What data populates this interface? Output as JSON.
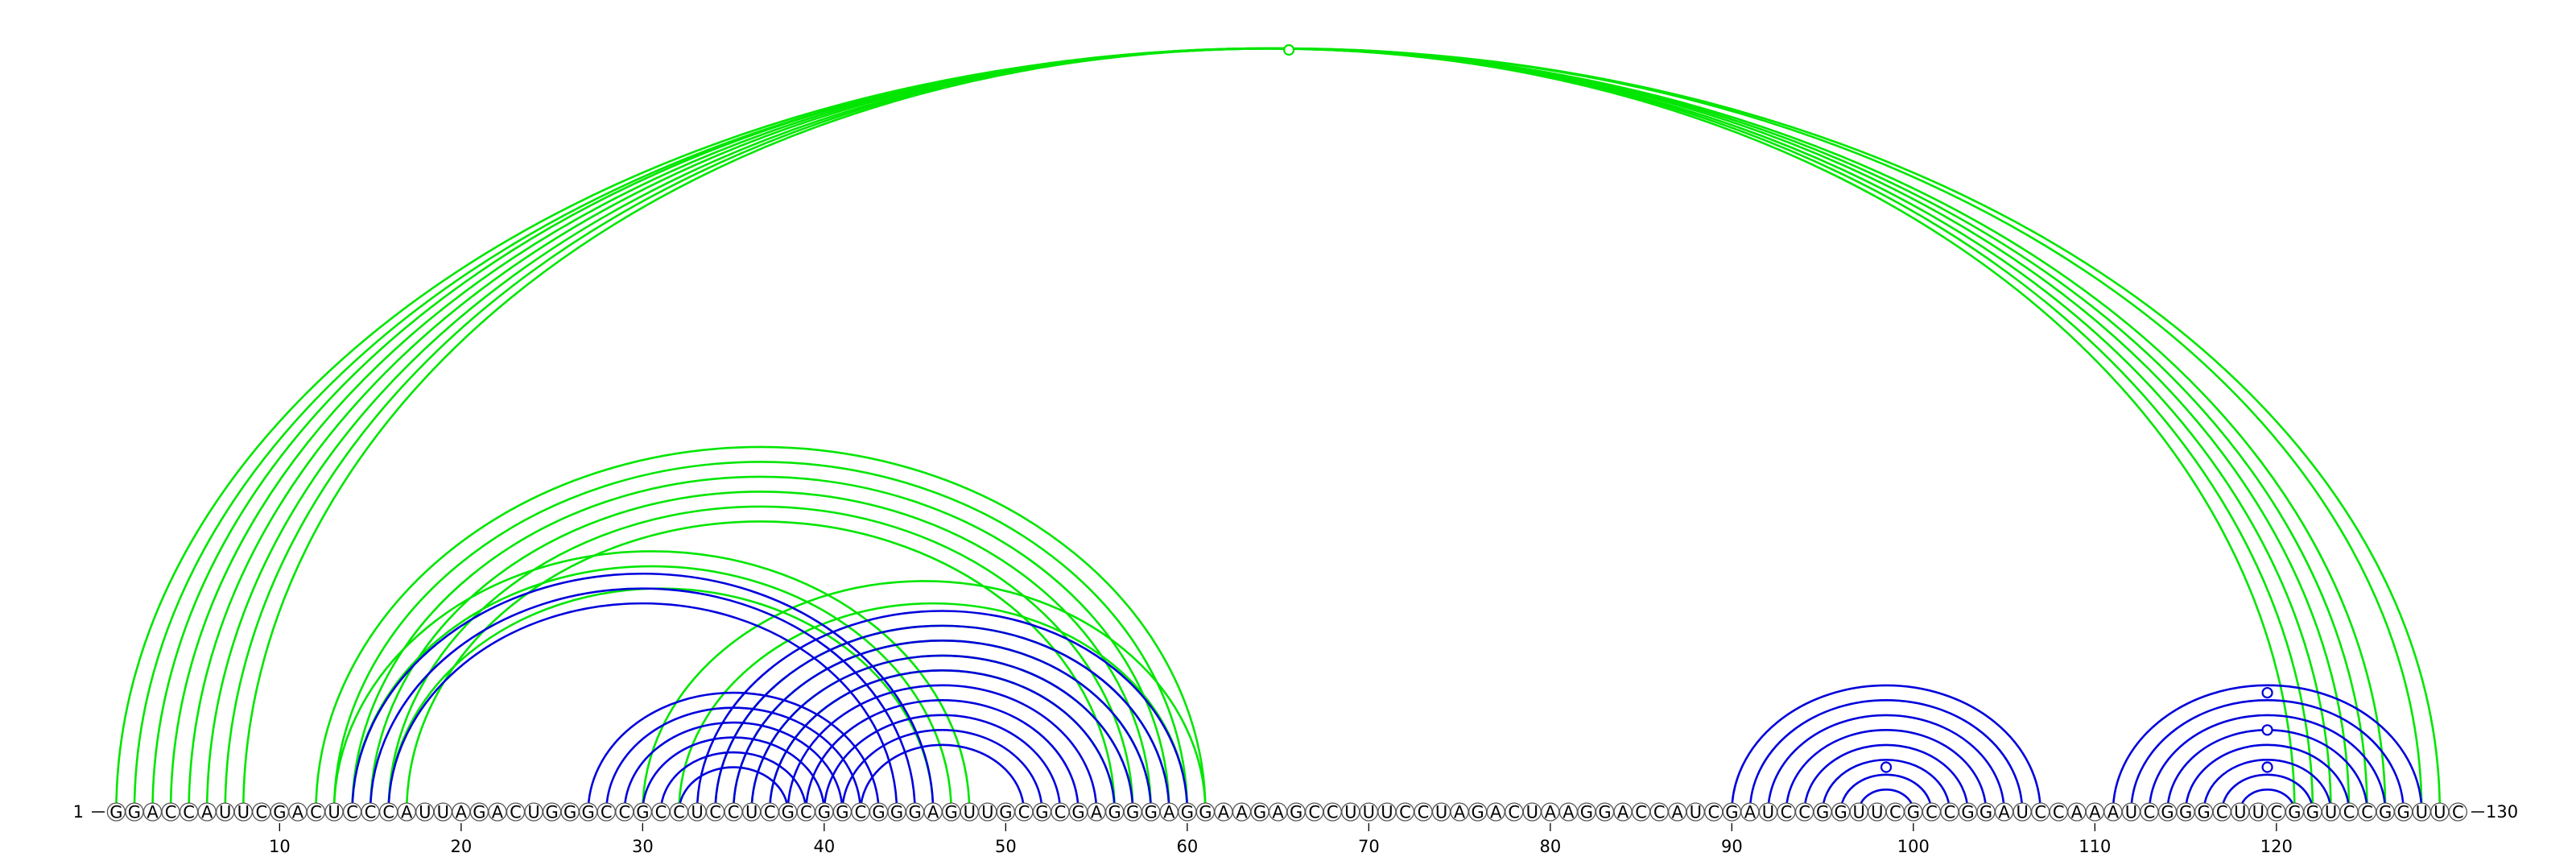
{
  "sequence": "GGACCAUUCGACUCCCAUUAGACUGGGCCGCCUCCUCGCGGCGGGAGUUGCGCGAGGGAGGAAGAGCCUUUCCUAGACUAAGGACCAUCGAUCCGGUUCGCCGGAUCCAAAUCGGGCUUCGGUCCGGUUC",
  "start_label": "1",
  "end_label": "130",
  "position_labels": [
    "10",
    "20",
    "30",
    "40",
    "50",
    "60",
    "70",
    "80",
    "90",
    "100",
    "110",
    "120"
  ],
  "colors": {
    "green": "#00e600",
    "blue": "#0000dd",
    "nucleotide_outline": "#555555"
  },
  "arc_sets": [
    {
      "name": "green-outer-helix",
      "color": "green",
      "pairs": [
        [
          1,
          129
        ],
        [
          2,
          128
        ],
        [
          3,
          126
        ],
        [
          4,
          125
        ],
        [
          5,
          124
        ],
        [
          6,
          123
        ],
        [
          7,
          122
        ],
        [
          8,
          121
        ]
      ]
    },
    {
      "name": "green-long-range-1",
      "color": "green",
      "pairs": [
        [
          12,
          61
        ],
        [
          13,
          60
        ],
        [
          14,
          59
        ],
        [
          15,
          58
        ],
        [
          16,
          57
        ],
        [
          17,
          56
        ]
      ]
    },
    {
      "name": "green-long-range-2",
      "color": "green",
      "pairs": [
        [
          13,
          48
        ],
        [
          14,
          47
        ],
        [
          16,
          46
        ]
      ]
    },
    {
      "name": "green-long-range-3",
      "color": "green",
      "pairs": [
        [
          30,
          61
        ],
        [
          32,
          60
        ],
        [
          34,
          59
        ],
        [
          35,
          58
        ],
        [
          36,
          57
        ],
        [
          37,
          56
        ]
      ]
    },
    {
      "name": "blue-helix-a",
      "color": "blue",
      "pairs": [
        [
          14,
          46
        ],
        [
          15,
          45
        ],
        [
          16,
          44
        ]
      ]
    },
    {
      "name": "blue-helix-b",
      "color": "blue",
      "pairs": [
        [
          27,
          43
        ],
        [
          28,
          42
        ],
        [
          29,
          41
        ],
        [
          30,
          40
        ],
        [
          31,
          39
        ],
        [
          32,
          38
        ]
      ]
    },
    {
      "name": "blue-helix-c",
      "color": "blue",
      "pairs": [
        [
          33,
          60
        ],
        [
          34,
          59
        ],
        [
          35,
          58
        ],
        [
          36,
          57
        ],
        [
          37,
          56
        ],
        [
          38,
          55
        ],
        [
          39,
          54
        ],
        [
          40,
          53
        ],
        [
          41,
          52
        ],
        [
          42,
          51
        ]
      ]
    },
    {
      "name": "blue-hairpin-1",
      "color": "blue",
      "pairs": [
        [
          90,
          107
        ],
        [
          91,
          106
        ],
        [
          92,
          105
        ],
        [
          93,
          104
        ],
        [
          94,
          103
        ],
        [
          95,
          102
        ],
        [
          96,
          101
        ],
        [
          97,
          100
        ]
      ]
    },
    {
      "name": "blue-hairpin-2",
      "color": "blue",
      "pairs": [
        [
          111,
          128
        ],
        [
          112,
          127
        ],
        [
          113,
          126
        ],
        [
          114,
          125
        ],
        [
          115,
          124
        ],
        [
          116,
          123
        ],
        [
          117,
          122
        ],
        [
          118,
          121
        ]
      ]
    }
  ],
  "markers": [
    {
      "position": 65.6,
      "height": 1,
      "color": "green"
    },
    {
      "position": 98.5,
      "height": 3,
      "color": "blue"
    },
    {
      "position": 119.5,
      "height": 8,
      "color": "blue"
    },
    {
      "position": 119.5,
      "height": 5.5,
      "color": "blue"
    },
    {
      "position": 119.5,
      "height": 3,
      "color": "blue"
    }
  ]
}
